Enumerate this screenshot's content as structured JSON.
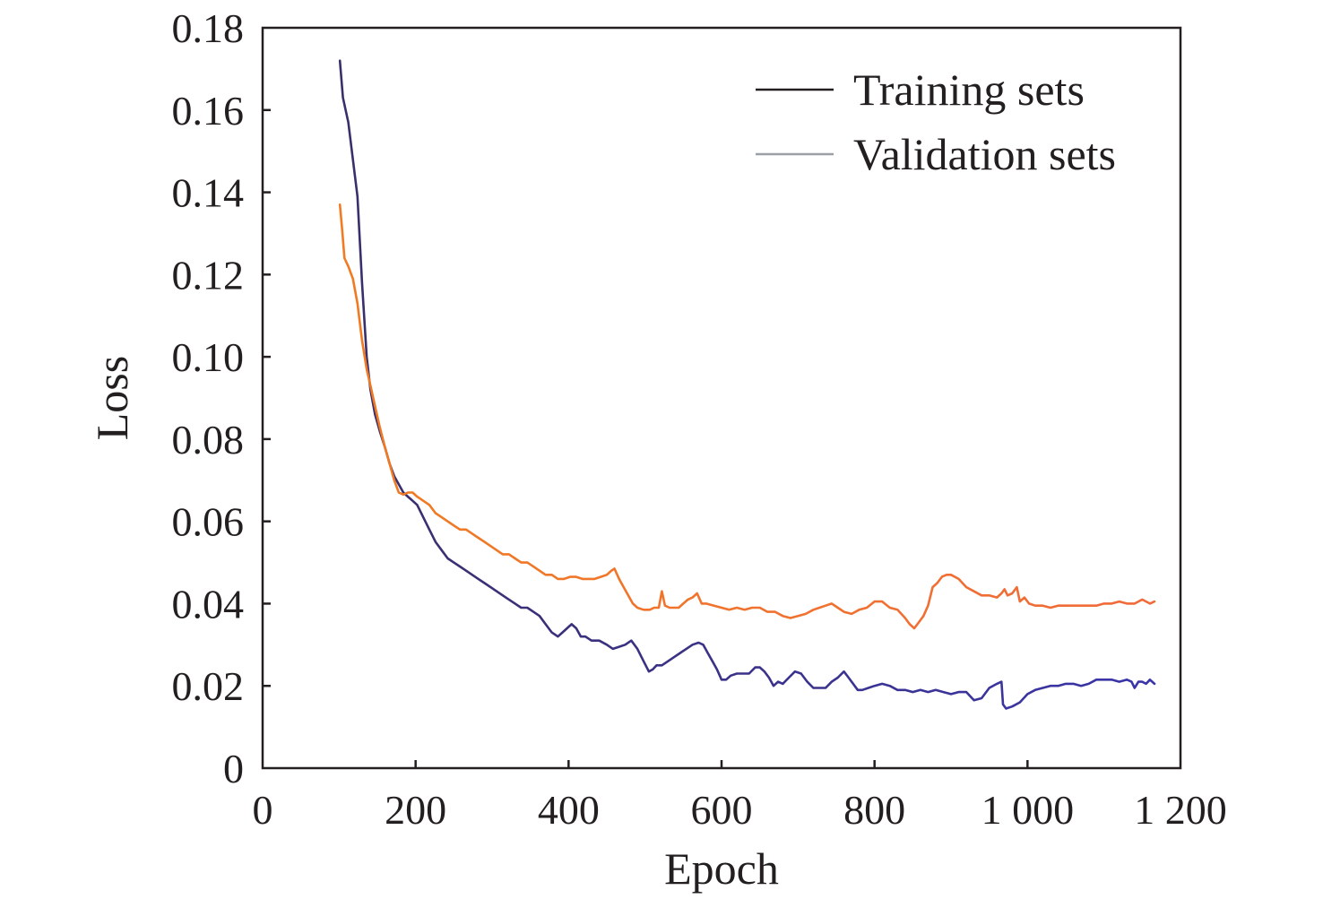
{
  "chart_data": {
    "type": "line",
    "title": "",
    "xlabel": "Epoch",
    "ylabel": "Loss",
    "xlim": [
      0,
      1200
    ],
    "ylim": [
      0,
      0.18
    ],
    "x_ticks": [
      {
        "value": 0,
        "label": "0"
      },
      {
        "value": 200,
        "label": "200"
      },
      {
        "value": 400,
        "label": "400"
      },
      {
        "value": 600,
        "label": "600"
      },
      {
        "value": 800,
        "label": "800"
      },
      {
        "value": 1000,
        "label": "1 000"
      },
      {
        "value": 1200,
        "label": "1 200"
      }
    ],
    "y_ticks": [
      {
        "value": 0,
        "label": "0"
      },
      {
        "value": 0.02,
        "label": "0.02"
      },
      {
        "value": 0.04,
        "label": "0.04"
      },
      {
        "value": 0.06,
        "label": "0.06"
      },
      {
        "value": 0.08,
        "label": "0.08"
      },
      {
        "value": 0.1,
        "label": "0.10"
      },
      {
        "value": 0.12,
        "label": "0.12"
      },
      {
        "value": 0.14,
        "label": "0.14"
      },
      {
        "value": 0.16,
        "label": "0.16"
      },
      {
        "value": 0.18,
        "label": "0.18"
      }
    ],
    "grid": false,
    "legend_position": "top-right",
    "series": [
      {
        "name": "Training sets",
        "legend_color": "#231f20",
        "color_start": "#3a2f6b",
        "color_end": "#3a35a8",
        "x": [
          101,
          105,
          112,
          118,
          124,
          130,
          136,
          141,
          147,
          153,
          160,
          166,
          172,
          178,
          184,
          190,
          196,
          202,
          210,
          218,
          226,
          234,
          242,
          250,
          258,
          266,
          274,
          282,
          290,
          298,
          306,
          314,
          322,
          330,
          338,
          346,
          354,
          362,
          370,
          378,
          386,
          392,
          398,
          404,
          410,
          416,
          422,
          430,
          440,
          450,
          458,
          466,
          474,
          482,
          490,
          498,
          505,
          510,
          515,
          522,
          530,
          538,
          546,
          554,
          562,
          570,
          576,
          582,
          588,
          594,
          600,
          606,
          612,
          620,
          628,
          636,
          644,
          650,
          656,
          662,
          668,
          674,
          680,
          688,
          696,
          704,
          712,
          720,
          728,
          736,
          744,
          752,
          760,
          766,
          772,
          778,
          784,
          792,
          800,
          810,
          820,
          830,
          840,
          850,
          860,
          870,
          880,
          890,
          900,
          910,
          920,
          930,
          940,
          950,
          960,
          966,
          968,
          972,
          980,
          990,
          1000,
          1010,
          1020,
          1030,
          1040,
          1050,
          1060,
          1070,
          1080,
          1090,
          1100,
          1110,
          1120,
          1130,
          1136,
          1140,
          1145,
          1150,
          1155,
          1160,
          1166
        ],
        "y": [
          0.172,
          0.163,
          0.157,
          0.148,
          0.139,
          0.118,
          0.1,
          0.092,
          0.086,
          0.082,
          0.078,
          0.074,
          0.071,
          0.069,
          0.067,
          0.066,
          0.065,
          0.064,
          0.061,
          0.058,
          0.055,
          0.053,
          0.051,
          0.05,
          0.049,
          0.048,
          0.047,
          0.046,
          0.045,
          0.044,
          0.043,
          0.042,
          0.041,
          0.04,
          0.039,
          0.039,
          0.038,
          0.037,
          0.035,
          0.033,
          0.032,
          0.033,
          0.034,
          0.035,
          0.034,
          0.032,
          0.032,
          0.031,
          0.031,
          0.03,
          0.029,
          0.0295,
          0.03,
          0.031,
          0.029,
          0.026,
          0.0235,
          0.024,
          0.025,
          0.025,
          0.026,
          0.027,
          0.028,
          0.029,
          0.03,
          0.0305,
          0.03,
          0.028,
          0.026,
          0.024,
          0.0215,
          0.0215,
          0.0225,
          0.023,
          0.023,
          0.023,
          0.0245,
          0.0245,
          0.0235,
          0.022,
          0.02,
          0.021,
          0.0205,
          0.022,
          0.0235,
          0.023,
          0.021,
          0.0195,
          0.0195,
          0.0195,
          0.021,
          0.022,
          0.0235,
          0.022,
          0.0205,
          0.019,
          0.019,
          0.0195,
          0.02,
          0.0205,
          0.02,
          0.019,
          0.019,
          0.0185,
          0.019,
          0.0185,
          0.019,
          0.0185,
          0.018,
          0.0185,
          0.0185,
          0.0165,
          0.017,
          0.0195,
          0.0205,
          0.021,
          0.0155,
          0.0145,
          0.015,
          0.016,
          0.018,
          0.019,
          0.0195,
          0.02,
          0.02,
          0.0205,
          0.0205,
          0.02,
          0.0205,
          0.0215,
          0.0215,
          0.0215,
          0.021,
          0.0215,
          0.021,
          0.0195,
          0.021,
          0.021,
          0.0205,
          0.0215,
          0.0205
        ]
      },
      {
        "name": "Validation sets",
        "legend_color": "#9aa0a6",
        "color_start": "#f07b22",
        "color_end": "#f06a3a",
        "x": [
          101,
          104,
          107,
          112,
          118,
          124,
          130,
          136,
          141,
          147,
          153,
          160,
          166,
          172,
          178,
          184,
          190,
          196,
          202,
          210,
          218,
          226,
          234,
          242,
          250,
          258,
          266,
          274,
          282,
          290,
          298,
          306,
          314,
          322,
          330,
          338,
          346,
          354,
          362,
          370,
          378,
          386,
          394,
          402,
          410,
          418,
          426,
          434,
          442,
          450,
          456,
          460,
          466,
          472,
          478,
          484,
          490,
          498,
          506,
          512,
          518,
          522,
          526,
          532,
          538,
          544,
          550,
          556,
          562,
          568,
          574,
          580,
          590,
          600,
          610,
          620,
          630,
          640,
          650,
          660,
          670,
          680,
          690,
          700,
          710,
          720,
          728,
          736,
          744,
          752,
          760,
          770,
          780,
          790,
          800,
          810,
          820,
          830,
          840,
          846,
          852,
          858,
          864,
          870,
          876,
          882,
          888,
          894,
          900,
          910,
          920,
          930,
          940,
          950,
          960,
          966,
          970,
          974,
          980,
          986,
          990,
          996,
          1002,
          1010,
          1020,
          1030,
          1040,
          1050,
          1060,
          1070,
          1080,
          1090,
          1100,
          1110,
          1120,
          1130,
          1140,
          1145,
          1150,
          1155,
          1160,
          1166
        ],
        "y": [
          0.137,
          0.131,
          0.124,
          0.122,
          0.119,
          0.113,
          0.104,
          0.097,
          0.093,
          0.088,
          0.083,
          0.078,
          0.074,
          0.07,
          0.067,
          0.0665,
          0.067,
          0.067,
          0.066,
          0.065,
          0.064,
          0.062,
          0.061,
          0.06,
          0.059,
          0.058,
          0.058,
          0.057,
          0.056,
          0.055,
          0.054,
          0.053,
          0.052,
          0.052,
          0.051,
          0.05,
          0.05,
          0.049,
          0.048,
          0.047,
          0.047,
          0.046,
          0.046,
          0.0465,
          0.0465,
          0.046,
          0.046,
          0.046,
          0.0465,
          0.047,
          0.048,
          0.0485,
          0.046,
          0.044,
          0.042,
          0.04,
          0.039,
          0.0385,
          0.0385,
          0.039,
          0.039,
          0.043,
          0.0395,
          0.039,
          0.039,
          0.039,
          0.04,
          0.041,
          0.0415,
          0.0425,
          0.04,
          0.04,
          0.0395,
          0.039,
          0.0385,
          0.039,
          0.0385,
          0.039,
          0.039,
          0.038,
          0.038,
          0.037,
          0.0365,
          0.037,
          0.0375,
          0.0385,
          0.039,
          0.0395,
          0.04,
          0.039,
          0.038,
          0.0375,
          0.0385,
          0.039,
          0.0405,
          0.0405,
          0.039,
          0.0385,
          0.0365,
          0.035,
          0.034,
          0.0355,
          0.037,
          0.0395,
          0.044,
          0.045,
          0.0465,
          0.047,
          0.047,
          0.046,
          0.044,
          0.043,
          0.042,
          0.042,
          0.0415,
          0.0425,
          0.0435,
          0.042,
          0.0425,
          0.044,
          0.0405,
          0.0415,
          0.04,
          0.0395,
          0.0395,
          0.039,
          0.0395,
          0.0395,
          0.0395,
          0.0395,
          0.0395,
          0.0395,
          0.04,
          0.04,
          0.0405,
          0.04,
          0.04,
          0.0405,
          0.041,
          0.0405,
          0.04,
          0.0405
        ]
      }
    ]
  }
}
